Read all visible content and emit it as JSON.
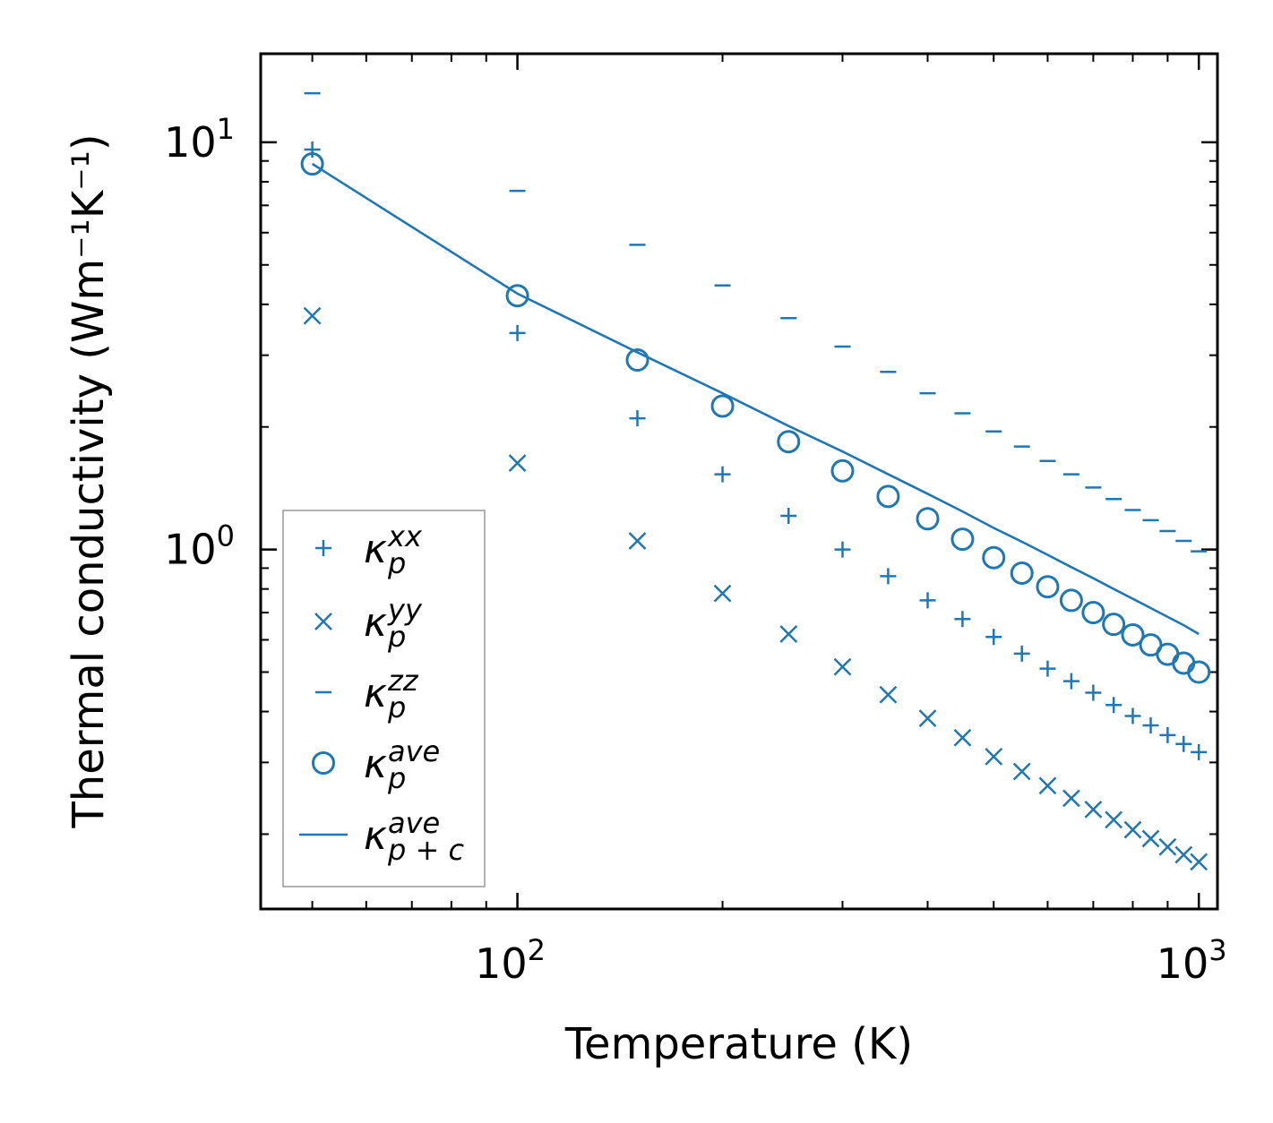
{
  "chart_data": {
    "type": "scatter",
    "xscale": "log",
    "yscale": "log",
    "xlabel": "Temperature (K)",
    "ylabel": "Thermal conductivity (Wm⁻¹K⁻¹)",
    "xlim": [
      42,
      1065
    ],
    "ylim": [
      0.131,
      16.5
    ],
    "xticks": [
      {
        "value": 100,
        "base": "10",
        "exp": "2"
      },
      {
        "value": 1000,
        "base": "10",
        "exp": "3"
      }
    ],
    "yticks": [
      {
        "value": 1,
        "base": "10",
        "exp": "0"
      },
      {
        "value": 10,
        "base": "10",
        "exp": "1"
      }
    ],
    "color": "#1f77b4",
    "x": [
      50,
      100,
      150,
      200,
      250,
      300,
      350,
      400,
      450,
      500,
      550,
      600,
      650,
      700,
      750,
      800,
      850,
      900,
      950,
      1000
    ],
    "series": [
      {
        "name": "kappa_p^xx",
        "marker": "plus",
        "label": {
          "base": "κ",
          "sub": "p",
          "sup": "xx"
        },
        "values": [
          9.6,
          3.4,
          2.1,
          1.53,
          1.21,
          1.0,
          0.86,
          0.75,
          0.675,
          0.61,
          0.555,
          0.51,
          0.475,
          0.445,
          0.415,
          0.39,
          0.37,
          0.35,
          0.333,
          0.318
        ]
      },
      {
        "name": "kappa_p^yy",
        "marker": "x",
        "label": {
          "base": "κ",
          "sub": "p",
          "sup": "yy"
        },
        "values": [
          3.75,
          1.63,
          1.05,
          0.78,
          0.62,
          0.515,
          0.44,
          0.385,
          0.345,
          0.31,
          0.285,
          0.263,
          0.245,
          0.23,
          0.217,
          0.205,
          0.195,
          0.186,
          0.178,
          0.171
        ]
      },
      {
        "name": "kappa_p^zz",
        "marker": "hline",
        "label": {
          "base": "κ",
          "sub": "p",
          "sup": "zz"
        },
        "values": [
          13.2,
          7.6,
          5.6,
          4.45,
          3.7,
          3.15,
          2.73,
          2.42,
          2.16,
          1.95,
          1.79,
          1.65,
          1.53,
          1.42,
          1.33,
          1.25,
          1.18,
          1.11,
          1.05,
          0.99
        ]
      },
      {
        "name": "kappa_p^ave",
        "marker": "circle",
        "label": {
          "base": "κ",
          "sub": "p",
          "sup": "ave"
        },
        "values": [
          8.85,
          4.2,
          2.92,
          2.25,
          1.84,
          1.56,
          1.35,
          1.19,
          1.06,
          0.955,
          0.875,
          0.81,
          0.75,
          0.7,
          0.655,
          0.617,
          0.583,
          0.553,
          0.526,
          0.5
        ]
      },
      {
        "name": "kappa_p+c^ave",
        "marker": "line",
        "label": {
          "base": "κ",
          "sub": "p + c",
          "sup": "ave"
        },
        "values": [
          8.85,
          4.25,
          3.05,
          2.42,
          2.01,
          1.74,
          1.53,
          1.37,
          1.24,
          1.13,
          1.045,
          0.97,
          0.905,
          0.85,
          0.8,
          0.757,
          0.718,
          0.683,
          0.652,
          0.62
        ]
      }
    ],
    "legend": "lower-left",
    "grid": false
  }
}
